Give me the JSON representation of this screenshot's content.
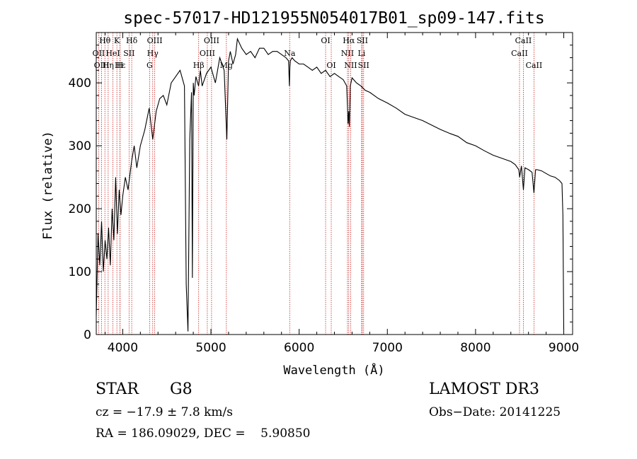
{
  "chart_data": {
    "type": "line",
    "title": "spec-57017-HD121955N054017B01_sp09-147.fits",
    "xlabel": "Wavelength (Å)",
    "ylabel": "Flux (relative)",
    "xlim": [
      3700,
      9100
    ],
    "ylim": [
      0,
      480
    ],
    "xticks": [
      4000,
      5000,
      6000,
      7000,
      8000,
      9000
    ],
    "yticks": [
      0,
      100,
      200,
      300,
      400
    ],
    "series": [
      {
        "name": "spectrum",
        "x": [
          3700,
          3720,
          3740,
          3760,
          3780,
          3800,
          3820,
          3840,
          3860,
          3880,
          3900,
          3920,
          3940,
          3960,
          3980,
          4000,
          4030,
          4060,
          4100,
          4130,
          4160,
          4200,
          4250,
          4300,
          4340,
          4380,
          4420,
          4460,
          4500,
          4550,
          4600,
          4650,
          4700,
          4720,
          4740,
          4760,
          4780,
          4790,
          4800,
          4810,
          4830,
          4860,
          4880,
          4900,
          4950,
          5000,
          5050,
          5100,
          5150,
          5180,
          5200,
          5220,
          5250,
          5280,
          5300,
          5350,
          5400,
          5450,
          5500,
          5550,
          5600,
          5650,
          5700,
          5750,
          5800,
          5850,
          5880,
          5890,
          5895,
          5900,
          5920,
          5950,
          6000,
          6050,
          6100,
          6150,
          6200,
          6250,
          6300,
          6350,
          6400,
          6450,
          6500,
          6540,
          6555,
          6563,
          6570,
          6580,
          6600,
          6650,
          6700,
          6750,
          6800,
          6900,
          7000,
          7100,
          7200,
          7300,
          7400,
          7500,
          7600,
          7700,
          7800,
          7900,
          8000,
          8100,
          8200,
          8300,
          8400,
          8450,
          8490,
          8500,
          8520,
          8542,
          8560,
          8600,
          8640,
          8662,
          8680,
          8700,
          8750,
          8800,
          8850,
          8900,
          8950,
          8980,
          8990,
          9000
        ],
        "values": [
          30,
          160,
          110,
          180,
          100,
          150,
          120,
          170,
          110,
          200,
          150,
          250,
          160,
          230,
          190,
          220,
          250,
          230,
          275,
          300,
          265,
          300,
          325,
          360,
          310,
          355,
          375,
          380,
          365,
          400,
          410,
          420,
          395,
          80,
          5,
          310,
          385,
          90,
          400,
          380,
          410,
          395,
          420,
          395,
          415,
          425,
          400,
          440,
          420,
          310,
          435,
          450,
          430,
          445,
          470,
          455,
          445,
          450,
          440,
          455,
          455,
          445,
          450,
          450,
          445,
          440,
          435,
          395,
          425,
          435,
          440,
          435,
          430,
          430,
          425,
          420,
          425,
          415,
          420,
          410,
          415,
          410,
          405,
          395,
          335,
          355,
          330,
          395,
          408,
          400,
          395,
          388,
          385,
          375,
          368,
          360,
          350,
          345,
          340,
          333,
          326,
          320,
          315,
          305,
          300,
          292,
          285,
          280,
          275,
          270,
          262,
          250,
          268,
          230,
          265,
          262,
          258,
          225,
          262,
          262,
          260,
          256,
          252,
          250,
          245,
          240,
          190,
          8
        ]
      }
    ],
    "lines": [
      {
        "name": "Hθ",
        "wavelength": 3798,
        "row": 0
      },
      {
        "name": "OII",
        "wavelength": 3727,
        "row": 1
      },
      {
        "name": "OIII",
        "wavelength": 3761,
        "row": 2
      },
      {
        "name": "K",
        "wavelength": 3934,
        "row": 0
      },
      {
        "name": "HeI",
        "wavelength": 3889,
        "row": 1
      },
      {
        "name": "Hε",
        "wavelength": 3970,
        "row": 2
      },
      {
        "name": "Hη",
        "wavelength": 3835,
        "row": 2
      },
      {
        "name": "H",
        "wavelength": 3968,
        "row": 2
      },
      {
        "name": "Hδ",
        "wavelength": 4102,
        "row": 0
      },
      {
        "name": "SII",
        "wavelength": 4072,
        "row": 1
      },
      {
        "name": "OIII",
        "wavelength": 4363,
        "row": 0
      },
      {
        "name": "Hγ",
        "wavelength": 4340,
        "row": 1
      },
      {
        "name": "G",
        "wavelength": 4305,
        "row": 2
      },
      {
        "name": "OIII",
        "wavelength": 5007,
        "row": 0
      },
      {
        "name": "OIII",
        "wavelength": 4959,
        "row": 1
      },
      {
        "name": "Hβ",
        "wavelength": 4861,
        "row": 2
      },
      {
        "name": "Mg",
        "wavelength": 5175,
        "row": 2
      },
      {
        "name": "Na",
        "wavelength": 5893,
        "row": 1
      },
      {
        "name": "OI",
        "wavelength": 6300,
        "row": 0
      },
      {
        "name": "OI",
        "wavelength": 6364,
        "row": 2
      },
      {
        "name": "Hα",
        "wavelength": 6563,
        "row": 0
      },
      {
        "name": "SII",
        "wavelength": 6716,
        "row": 0
      },
      {
        "name": "NII",
        "wavelength": 6548,
        "row": 1
      },
      {
        "name": "Li",
        "wavelength": 6708,
        "row": 1
      },
      {
        "name": "NII",
        "wavelength": 6584,
        "row": 2
      },
      {
        "name": "SII",
        "wavelength": 6731,
        "row": 2
      },
      {
        "name": "CaII",
        "wavelength": 8542,
        "row": 0
      },
      {
        "name": "CaII",
        "wavelength": 8498,
        "row": 1
      },
      {
        "name": "CaII",
        "wavelength": 8662,
        "row": 2
      }
    ]
  },
  "info": {
    "object_type": "STAR",
    "subclass": "G8",
    "survey": "LAMOST DR3",
    "cz": "cz = −17.9 ± 7.8 km/s",
    "obs_date": "Obs−Date: 20141225",
    "radec": "RA = 186.09029, DEC =    5.90850"
  },
  "colors": {
    "spectrum": "#000000",
    "line_marker": "#cc2222",
    "axis": "#000000"
  }
}
